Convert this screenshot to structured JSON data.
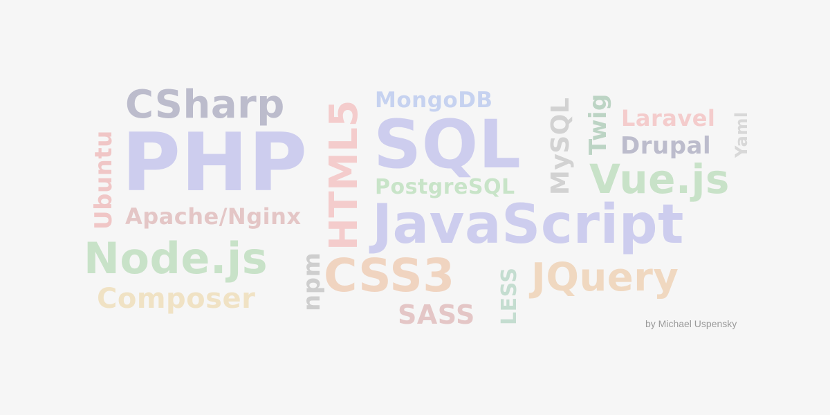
{
  "words": {
    "csharp": {
      "text": "CSharp",
      "color": "#bcbccc"
    },
    "php": {
      "text": "PHP",
      "color": "#cdcdee"
    },
    "ubuntu": {
      "text": "Ubuntu",
      "color": "#f0c6c6"
    },
    "apache_nginx": {
      "text": "Apache/Nginx",
      "color": "#e4c6c6"
    },
    "nodejs": {
      "text": "Node.js",
      "color": "#c8e2c8"
    },
    "composer": {
      "text": "Composer",
      "color": "#f0e2c4"
    },
    "npm": {
      "text": "npm",
      "color": "#cecece"
    },
    "html5": {
      "text": "HTML5",
      "color": "#f4cccc"
    },
    "mongodb": {
      "text": "MongoDB",
      "color": "#c6d2f0"
    },
    "sql": {
      "text": "SQL",
      "color": "#cdcdee"
    },
    "postgresql": {
      "text": "PostgreSQL",
      "color": "#c8e4c8"
    },
    "javascript": {
      "text": "JavaScript",
      "color": "#cdcdee"
    },
    "css3": {
      "text": "CSS3",
      "color": "#f0d4c0"
    },
    "sass": {
      "text": "SASS",
      "color": "#e4c6c6"
    },
    "less": {
      "text": "LESS",
      "color": "#c4ddd0"
    },
    "mysql": {
      "text": "MySQL",
      "color": "#d2d2d2"
    },
    "twig": {
      "text": "Twig",
      "color": "#bcd4c4"
    },
    "laravel": {
      "text": "Laravel",
      "color": "#f4cccc"
    },
    "drupal": {
      "text": "Drupal",
      "color": "#bcbccc"
    },
    "yaml": {
      "text": "Yaml",
      "color": "#d8d8d8"
    },
    "vuejs": {
      "text": "Vue.js",
      "color": "#c8e2c8"
    },
    "jquery": {
      "text": "JQuery",
      "color": "#f0d8c0"
    }
  },
  "credit": "by Michael Uspensky"
}
